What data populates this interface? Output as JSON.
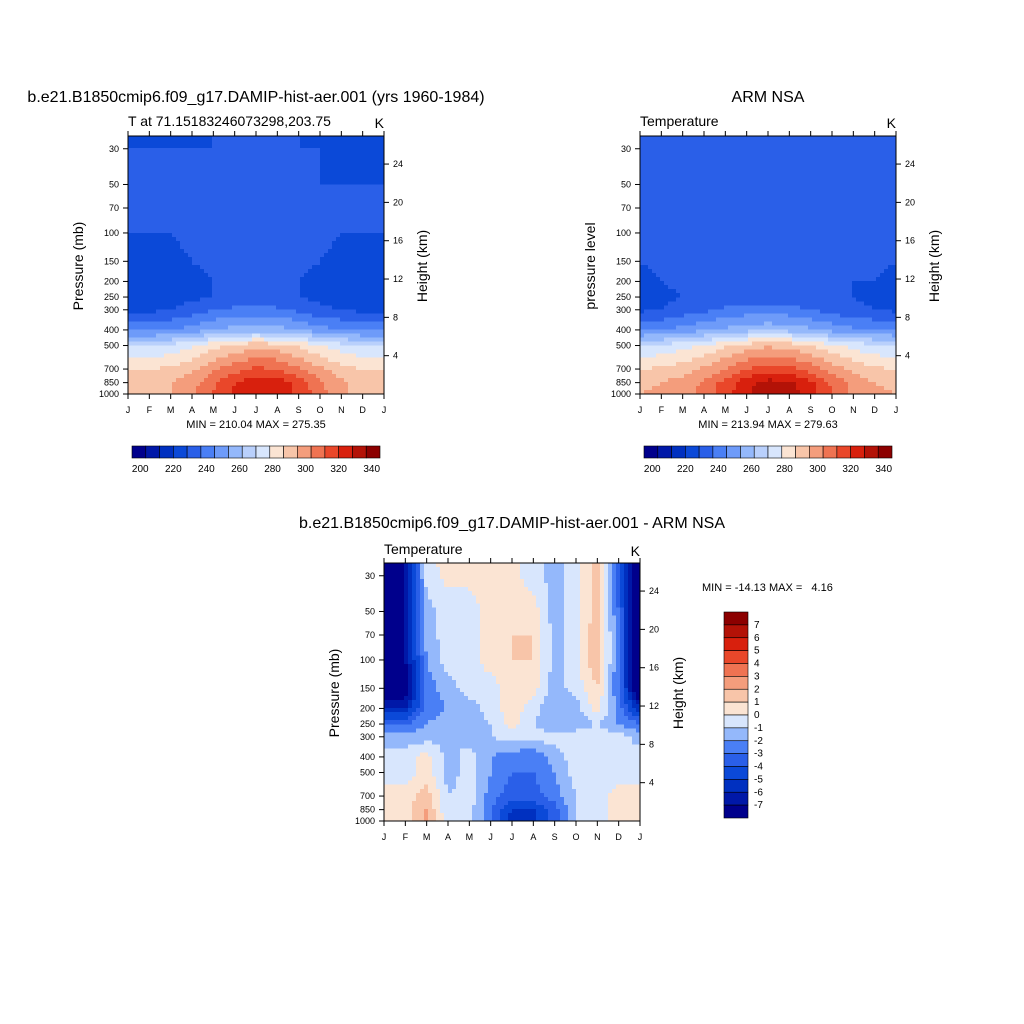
{
  "panels": {
    "model": {
      "title": "b.e21.B1850cmip6.f09_g17.DAMIP-hist-aer.001 (yrs 1960-1984)",
      "left_string": "T at 71.15183246073298,203.75",
      "right_string": "K",
      "ylabel": "Pressure (mb)",
      "ylabel_right": "Height (km)",
      "minmax": "MIN = 210.04 MAX = 275.35"
    },
    "obs": {
      "title": "ARM NSA",
      "left_string": "Temperature",
      "right_string": "K",
      "ylabel": "pressure level",
      "ylabel_right": "Height (km)",
      "minmax": "MIN = 213.94 MAX = 279.63"
    },
    "diff": {
      "title": "b.e21.B1850cmip6.f09_g17.DAMIP-hist-aer.001 - ARM NSA",
      "left_string": "Temperature",
      "right_string": "K",
      "ylabel": "Pressure (mb)",
      "ylabel_right": "Height (km)",
      "minmax": "MIN = -14.13 MAX =   4.16"
    }
  },
  "chart_data": [
    {
      "type": "heatmap",
      "title": "b.e21.B1850cmip6.f09_g17.DAMIP-hist-aer.001 (yrs 1960-1984)",
      "xlabel": "",
      "ylabel": "Pressure (mb)",
      "ylabel_right": "Height (km)",
      "x_ticks": [
        "J",
        "F",
        "M",
        "A",
        "M",
        "J",
        "J",
        "A",
        "S",
        "O",
        "N",
        "D",
        "J"
      ],
      "y_ticks": [
        30,
        50,
        70,
        100,
        150,
        200,
        250,
        300,
        400,
        500,
        700,
        850,
        1000
      ],
      "y_right_ticks": [
        4,
        8,
        12,
        16,
        20,
        24
      ],
      "y_scale": "log",
      "ylim": [
        1000,
        25
      ],
      "months": [
        1,
        2,
        3,
        4,
        5,
        6,
        7,
        8,
        9,
        10,
        11,
        12,
        13
      ],
      "levels": [
        25,
        30,
        50,
        70,
        100,
        150,
        200,
        250,
        300,
        400,
        500,
        700,
        850,
        1000
      ],
      "colorbar": {
        "labels": [
          200,
          220,
          240,
          260,
          280,
          300,
          320,
          340
        ],
        "levels": [
          195,
          200,
          205,
          210,
          215,
          220,
          225,
          230,
          235,
          240,
          245,
          250,
          255,
          260,
          265,
          270,
          275,
          280,
          285,
          290,
          295,
          300,
          305,
          310,
          315,
          320,
          325,
          330,
          335,
          340,
          345
        ]
      },
      "minmax": "MIN = 210.04 MAX = 275.35",
      "values": [
        [
          215,
          214,
          214,
          214,
          215,
          216,
          217,
          216,
          215,
          214,
          214,
          214,
          215
        ],
        [
          215,
          215,
          215,
          215,
          215,
          216,
          217,
          216,
          215,
          215,
          214,
          214,
          215
        ],
        [
          215,
          215,
          215,
          215,
          216,
          216,
          216,
          216,
          216,
          215,
          215,
          215,
          215
        ],
        [
          215,
          215,
          215,
          216,
          216,
          216,
          216,
          216,
          216,
          216,
          215,
          215,
          215
        ],
        [
          215,
          215,
          215,
          216,
          216,
          216,
          216,
          216,
          216,
          216,
          215,
          215,
          215
        ],
        [
          214,
          214,
          214,
          215,
          216,
          216,
          216,
          216,
          216,
          215,
          214,
          214,
          214
        ],
        [
          213,
          213,
          213,
          214,
          215,
          216,
          216,
          216,
          215,
          214,
          213,
          213,
          213
        ],
        [
          212,
          212,
          213,
          214,
          215,
          216,
          216,
          216,
          215,
          214,
          213,
          212,
          212
        ],
        [
          214,
          214,
          215,
          217,
          220,
          221,
          222,
          221,
          219,
          216,
          215,
          214,
          214
        ],
        [
          224,
          224,
          225,
          227,
          230,
          232,
          233,
          232,
          230,
          227,
          225,
          224,
          224
        ],
        [
          240,
          240,
          241,
          244,
          248,
          251,
          253,
          252,
          249,
          245,
          242,
          240,
          240
        ],
        [
          250,
          250,
          251,
          254,
          259,
          263,
          266,
          265,
          261,
          256,
          252,
          250,
          250
        ],
        [
          253,
          253,
          255,
          258,
          264,
          270,
          274,
          273,
          268,
          261,
          256,
          253,
          253
        ],
        [
          253,
          253,
          255,
          259,
          265,
          271,
          275,
          274,
          269,
          262,
          256,
          253,
          253
        ]
      ]
    },
    {
      "type": "heatmap",
      "title": "ARM NSA",
      "xlabel": "",
      "ylabel": "pressure level",
      "ylabel_right": "Height (km)",
      "x_ticks": [
        "J",
        "F",
        "M",
        "A",
        "M",
        "J",
        "J",
        "A",
        "S",
        "O",
        "N",
        "D",
        "J"
      ],
      "y_ticks": [
        30,
        50,
        70,
        100,
        150,
        200,
        250,
        300,
        400,
        500,
        700,
        850,
        1000
      ],
      "y_right_ticks": [
        4,
        8,
        12,
        16,
        20,
        24
      ],
      "y_scale": "log",
      "ylim": [
        1000,
        25
      ],
      "months": [
        1,
        2,
        3,
        4,
        5,
        6,
        7,
        8,
        9,
        10,
        11,
        12,
        13
      ],
      "levels": [
        25,
        30,
        50,
        70,
        100,
        150,
        200,
        250,
        300,
        400,
        500,
        700,
        850,
        1000
      ],
      "colorbar": {
        "labels": [
          200,
          220,
          240,
          260,
          280,
          300,
          320,
          340
        ],
        "levels": [
          195,
          200,
          205,
          210,
          215,
          220,
          225,
          230,
          235,
          240,
          245,
          250,
          255,
          260,
          265,
          270,
          275,
          280,
          285,
          290,
          295,
          300,
          305,
          310,
          315,
          320,
          325,
          330,
          335,
          340,
          345
        ]
      },
      "minmax": "MIN = 213.94 MAX = 279.63",
      "values": [
        [
          216,
          216,
          216,
          216,
          216,
          216,
          217,
          216,
          216,
          216,
          215,
          215,
          216
        ],
        [
          216,
          216,
          216,
          216,
          216,
          216,
          216,
          216,
          216,
          216,
          215,
          215,
          216
        ],
        [
          216,
          216,
          216,
          216,
          216,
          216,
          216,
          216,
          216,
          216,
          215,
          215,
          216
        ],
        [
          216,
          216,
          216,
          216,
          216,
          216,
          216,
          216,
          216,
          216,
          215,
          215,
          216
        ],
        [
          216,
          216,
          216,
          216,
          216,
          216,
          216,
          216,
          216,
          216,
          215,
          216,
          216
        ],
        [
          215,
          216,
          216,
          216,
          216,
          216,
          216,
          216,
          216,
          216,
          216,
          216,
          215
        ],
        [
          214,
          215,
          216,
          216,
          216,
          216,
          216,
          216,
          216,
          216,
          215,
          215,
          214
        ],
        [
          213,
          214,
          215,
          216,
          216,
          216,
          216,
          216,
          216,
          215,
          215,
          214,
          213
        ],
        [
          214,
          215,
          217,
          219,
          221,
          222,
          222,
          222,
          220,
          218,
          216,
          215,
          214
        ],
        [
          224,
          225,
          227,
          229,
          231,
          233,
          234,
          233,
          231,
          228,
          226,
          225,
          224
        ],
        [
          240,
          241,
          243,
          245,
          249,
          252,
          254,
          253,
          250,
          246,
          243,
          241,
          240
        ],
        [
          250,
          251,
          253,
          256,
          260,
          265,
          268,
          267,
          263,
          258,
          254,
          251,
          250
        ],
        [
          254,
          255,
          257,
          261,
          267,
          273,
          277,
          276,
          271,
          264,
          258,
          255,
          254
        ],
        [
          255,
          256,
          258,
          262,
          268,
          274,
          279,
          278,
          272,
          265,
          259,
          256,
          255
        ]
      ]
    },
    {
      "type": "heatmap",
      "title": "b.e21.B1850cmip6.f09_g17.DAMIP-hist-aer.001 - ARM NSA",
      "xlabel": "",
      "ylabel": "Pressure (mb)",
      "ylabel_right": "Height (km)",
      "x_ticks": [
        "J",
        "F",
        "M",
        "A",
        "M",
        "J",
        "J",
        "A",
        "S",
        "O",
        "N",
        "D",
        "J"
      ],
      "y_ticks": [
        30,
        50,
        70,
        100,
        150,
        200,
        250,
        300,
        400,
        500,
        700,
        850,
        1000
      ],
      "y_right_ticks": [
        4,
        8,
        12,
        16,
        20,
        24
      ],
      "y_scale": "log",
      "ylim": [
        1000,
        25
      ],
      "months": [
        1,
        2,
        3,
        4,
        5,
        6,
        7,
        8,
        9,
        10,
        11,
        12,
        13
      ],
      "levels": [
        25,
        30,
        50,
        70,
        100,
        150,
        200,
        250,
        300,
        400,
        500,
        700,
        850,
        1000
      ],
      "colorbar": {
        "labels": [
          -7,
          -6,
          -5,
          -4,
          -3,
          -2,
          -1,
          0,
          1,
          2,
          3,
          4,
          5,
          6,
          7
        ],
        "levels": [
          -8,
          -7,
          -6,
          -5,
          -4,
          -3,
          -2,
          -1,
          0,
          1,
          2,
          3,
          4,
          5,
          6,
          7,
          8
        ]
      },
      "minmax": "MIN = -14.13 MAX =   4.16",
      "values": [
        [
          -9,
          -7,
          -0.5,
          0.5,
          0.5,
          0.5,
          0.3,
          -0.5,
          -1.5,
          -0.5,
          1.5,
          -4,
          -9
        ],
        [
          -9,
          -7,
          -0.5,
          0.3,
          0.3,
          0.5,
          0.3,
          -0.5,
          -1.5,
          -0.5,
          1.5,
          -4,
          -9
        ],
        [
          -9,
          -7,
          -1.5,
          -0.5,
          -0.5,
          0.5,
          0.5,
          0.5,
          -1.5,
          -0.5,
          1.5,
          -3,
          -9
        ],
        [
          -9,
          -7,
          -1.5,
          -0.5,
          -0.5,
          0.5,
          1,
          1,
          -1.5,
          -0.5,
          2,
          -3,
          -9
        ],
        [
          -9,
          -7,
          -2,
          -0.5,
          -0.5,
          0.5,
          1,
          1,
          -1.5,
          -0.5,
          2,
          -3,
          -9
        ],
        [
          -9,
          -8,
          -2.5,
          -1.5,
          -0.5,
          -0.5,
          0.5,
          0.5,
          -1.5,
          -0.5,
          1,
          -3,
          -9
        ],
        [
          -6,
          -6,
          -2.5,
          -2,
          -1.5,
          -0.5,
          0.5,
          -0.5,
          -2,
          -1.5,
          0.5,
          -2.5,
          -6
        ],
        [
          -3,
          -3,
          -2,
          -1.5,
          -1.5,
          -1,
          0.5,
          -1,
          -2,
          -1.5,
          -1,
          -2,
          -3
        ],
        [
          -1.5,
          -1.5,
          -1.5,
          -1,
          -1.5,
          -1,
          -0.5,
          -0.5,
          -0.5,
          -0.5,
          -0.5,
          -0.5,
          -1.5
        ],
        [
          -0.5,
          -0.5,
          0.5,
          -1.5,
          -0.5,
          -2,
          -2.5,
          -3,
          -1.5,
          -0.5,
          -0.5,
          -0.5,
          -0.5
        ],
        [
          -0.5,
          -0.5,
          0.5,
          -1.5,
          -0.5,
          -2,
          -3,
          -3,
          -2,
          -0.5,
          -0.5,
          -0.5,
          -0.5
        ],
        [
          0.5,
          0.5,
          1.5,
          -1,
          -0.5,
          -2.5,
          -3.5,
          -3.5,
          -2.5,
          -1,
          -0.5,
          0.5,
          0.5
        ],
        [
          1,
          0.5,
          2,
          -1,
          -0.5,
          -3,
          -5,
          -5,
          -3.5,
          -1,
          -0.5,
          0.5,
          1
        ],
        [
          1,
          0.5,
          2.5,
          -0.5,
          -0.5,
          -3,
          -5.5,
          -5.5,
          -3.5,
          -1,
          -0.5,
          0.5,
          1
        ]
      ]
    }
  ],
  "colors": {
    "temp_scale": [
      "#00008c",
      "#0018a8",
      "#0030c0",
      "#0b49d8",
      "#2a5fe8",
      "#4a7ff5",
      "#6e9bf9",
      "#94b8fb",
      "#b9d0fc",
      "#d8e6fd",
      "#fbe4d3",
      "#f8c5a9",
      "#f49d7c",
      "#ef7352",
      "#e9472a",
      "#d8200d",
      "#b31207",
      "#8c0000"
    ],
    "diff_scale": [
      "#00008c",
      "#0018a8",
      "#0030c0",
      "#0b49d8",
      "#2a5fe8",
      "#4a7ff5",
      "#94b8fb",
      "#d8e6fd",
      "#fbe4d3",
      "#f8c5a9",
      "#f49d7c",
      "#ef7352",
      "#e9472a",
      "#d8200d",
      "#b31207",
      "#8c0000"
    ]
  }
}
